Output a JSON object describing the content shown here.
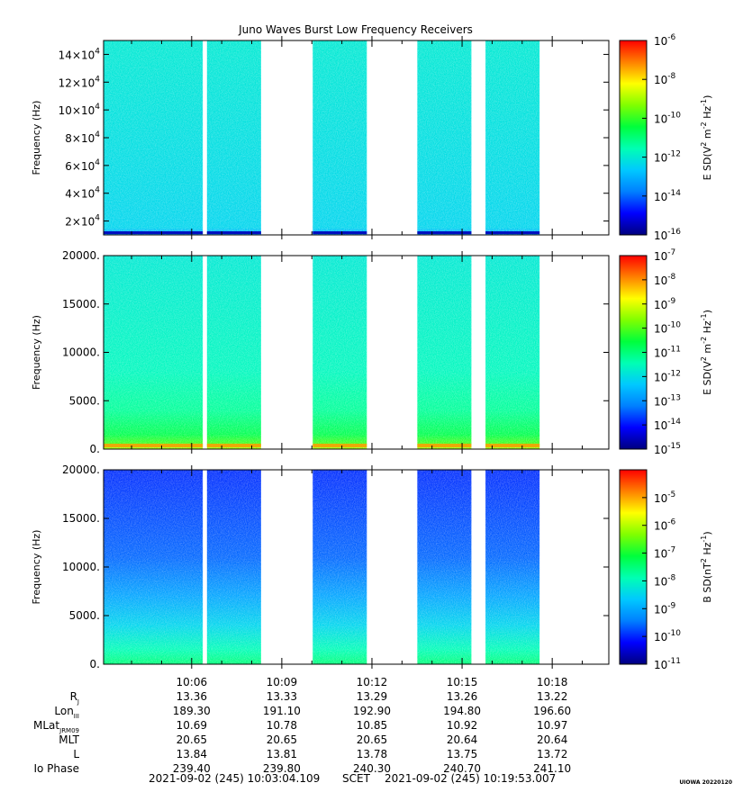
{
  "title": "Juno Waves Burst Low Frequency Receivers",
  "colors": {
    "colormap": [
      "#00007f",
      "#0000ff",
      "#007fff",
      "#00c8ff",
      "#00ffb4",
      "#00ff3c",
      "#80ff00",
      "#ffff00",
      "#ff8000",
      "#ff0000"
    ],
    "gap": "#ffffff",
    "frame": "#000000"
  },
  "chart_data": [
    {
      "type": "heatmap",
      "name": "panel-1",
      "ylabel": "Frequency (Hz)",
      "ylim": [
        10000,
        150000
      ],
      "yticks": [
        {
          "value": 20000,
          "mant": "2×10",
          "exp": "4"
        },
        {
          "value": 40000,
          "mant": "4×10",
          "exp": "4"
        },
        {
          "value": 60000,
          "mant": "6×10",
          "exp": "4"
        },
        {
          "value": 80000,
          "mant": "8×10",
          "exp": "4"
        },
        {
          "value": 100000,
          "mant": "10×10",
          "exp": "4"
        },
        {
          "value": 120000,
          "mant": "12×10",
          "exp": "4"
        },
        {
          "value": 140000,
          "mant": "14×10",
          "exp": "4"
        }
      ],
      "colorbar": {
        "label_main": "E SD(V",
        "label_sup": [
          "2",
          "-2",
          "-1"
        ],
        "label_parts": [
          "E SD(V",
          " m",
          " Hz",
          ")"
        ],
        "range_exp": [
          -16,
          -6
        ],
        "ticks_exp": [
          -16,
          -14,
          -12,
          -10,
          -8,
          -6
        ]
      },
      "profile": [
        {
          "f": 10000,
          "level": 0.22
        },
        {
          "f": 12000,
          "level": 0.3
        },
        {
          "f": 15000,
          "level": 0.36
        },
        {
          "f": 150000,
          "level": 0.4
        }
      ]
    },
    {
      "type": "heatmap",
      "name": "panel-2",
      "ylabel": "Frequency (Hz)",
      "ylim": [
        0,
        20000
      ],
      "yticks": [
        {
          "value": 0,
          "label": "0."
        },
        {
          "value": 5000,
          "label": "5000."
        },
        {
          "value": 10000,
          "label": "10000."
        },
        {
          "value": 15000,
          "label": "15000."
        },
        {
          "value": 20000,
          "label": "20000."
        }
      ],
      "colorbar": {
        "label_parts": [
          "E SD(V",
          " m",
          " Hz",
          ")"
        ],
        "label_sup": [
          "2",
          "-2",
          "-1"
        ],
        "range_exp": [
          -15,
          -7
        ],
        "ticks_exp": [
          -15,
          -14,
          -13,
          -12,
          -11,
          -10,
          -9,
          -8,
          -7
        ]
      },
      "profile": [
        {
          "f": 0,
          "level": 0.72
        },
        {
          "f": 500,
          "level": 0.62
        },
        {
          "f": 1500,
          "level": 0.54
        },
        {
          "f": 4000,
          "level": 0.47
        },
        {
          "f": 8000,
          "level": 0.43
        },
        {
          "f": 20000,
          "level": 0.4
        }
      ]
    },
    {
      "type": "heatmap",
      "name": "panel-3",
      "ylabel": "Frequency (Hz)",
      "ylim": [
        0,
        20000
      ],
      "yticks": [
        {
          "value": 0,
          "label": "0."
        },
        {
          "value": 5000,
          "label": "5000."
        },
        {
          "value": 10000,
          "label": "10000."
        },
        {
          "value": 15000,
          "label": "15000."
        },
        {
          "value": 20000,
          "label": "20000."
        }
      ],
      "colorbar": {
        "label_parts": [
          "B SD(nT",
          " Hz",
          ")"
        ],
        "label_sup": [
          "2",
          "-1"
        ],
        "range_exp": [
          -11,
          -4
        ],
        "ticks_exp": [
          -11,
          -10,
          -9,
          -8,
          -7,
          -6,
          -5
        ]
      },
      "profile": [
        {
          "f": 0,
          "level": 0.5
        },
        {
          "f": 1500,
          "level": 0.44
        },
        {
          "f": 4000,
          "level": 0.36
        },
        {
          "f": 7000,
          "level": 0.28
        },
        {
          "f": 11000,
          "level": 0.2
        },
        {
          "f": 20000,
          "level": 0.15
        }
      ]
    }
  ],
  "time_axis": {
    "start_label": "2021-09-02 (245) 10:03:04.109",
    "end_label": "2021-09-02 (245) 10:19:53.007",
    "scet": "SCET",
    "range_minutes": [
      3.0685,
      19.8835
    ],
    "major_ticks": [
      {
        "minute": 6,
        "label": "10:06"
      },
      {
        "minute": 9,
        "label": "10:09"
      },
      {
        "minute": 12,
        "label": "10:12"
      },
      {
        "minute": 15,
        "label": "10:15"
      },
      {
        "minute": 18,
        "label": "10:18"
      }
    ],
    "data_segments": [
      [
        3.0685,
        6.37
      ],
      [
        6.51,
        8.31
      ],
      [
        10.03,
        11.83
      ],
      [
        13.51,
        15.31
      ],
      [
        15.78,
        17.58
      ]
    ]
  },
  "ephemeris": {
    "rows": [
      {
        "label": "R",
        "sub": "J",
        "values": [
          "13.36",
          "13.33",
          "13.29",
          "13.26",
          "13.22"
        ]
      },
      {
        "label": "Lon",
        "sub": "III",
        "values": [
          "189.30",
          "191.10",
          "192.90",
          "194.80",
          "196.60"
        ]
      },
      {
        "label": "MLat",
        "sub": "JRM09",
        "values": [
          "10.69",
          "10.78",
          "10.85",
          "10.92",
          "10.97"
        ]
      },
      {
        "label": "MLT",
        "sub": "",
        "values": [
          "20.65",
          "20.65",
          "20.65",
          "20.64",
          "20.64"
        ]
      },
      {
        "label": "L",
        "sub": "",
        "values": [
          "13.84",
          "13.81",
          "13.78",
          "13.75",
          "13.72"
        ]
      },
      {
        "label": "Io Phase",
        "sub": "",
        "values": [
          "239.40",
          "239.80",
          "240.30",
          "240.70",
          "241.10"
        ]
      }
    ]
  },
  "stamp": "UIOWA 20220120"
}
